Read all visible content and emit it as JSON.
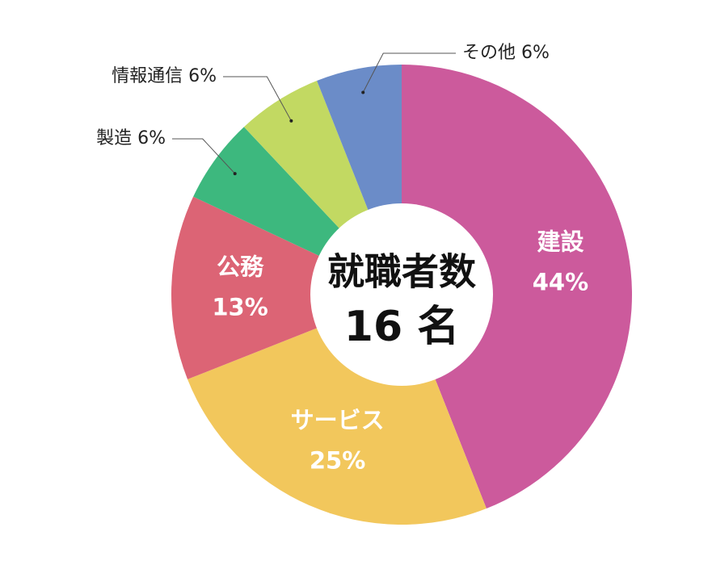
{
  "chart_data": {
    "type": "donut",
    "center_title": "就職者数",
    "center_value": "16 名",
    "categories": [
      "建設",
      "サービス",
      "公務",
      "製造",
      "情報通信",
      "その他"
    ],
    "values": [
      44,
      25,
      13,
      6,
      6,
      6
    ],
    "value_labels": [
      "44%",
      "25%",
      "13%",
      "6%",
      "6%",
      "6%"
    ],
    "colors": [
      "#cc5a9c",
      "#f2c75c",
      "#dc6475",
      "#3db87e",
      "#c2d962",
      "#6b8cc8"
    ]
  }
}
